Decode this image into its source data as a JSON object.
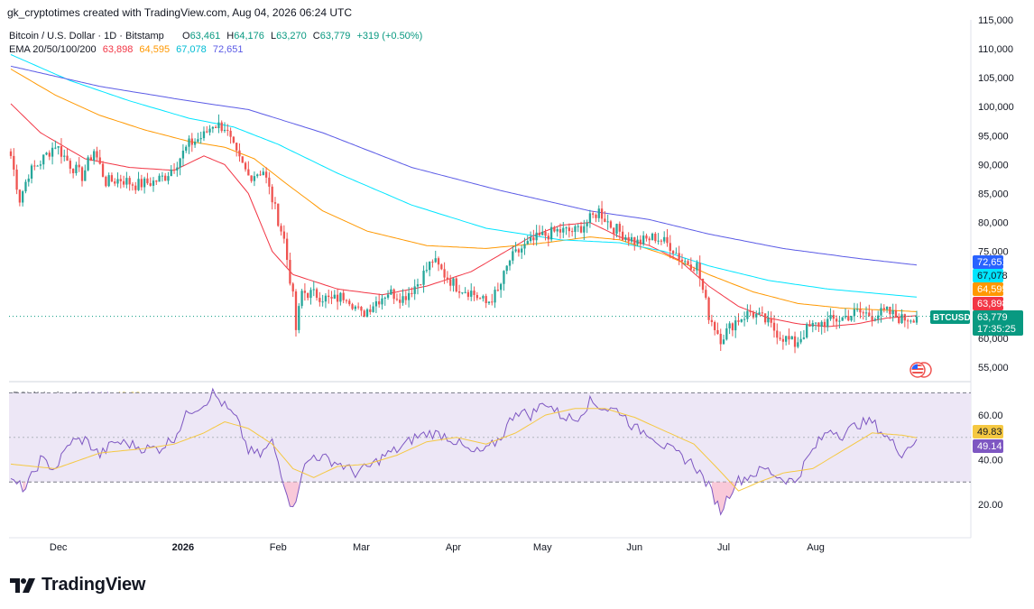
{
  "header": {
    "attribution": "gk_cryptotimes created with TradingView.com, Aug 04, 2026 06:24 UTC"
  },
  "legend": {
    "title": "Bitcoin / U.S. Dollar · 1D · Bitstamp",
    "o_label": "O",
    "o_value": "63,461",
    "h_label": "H",
    "h_value": "64,176",
    "l_label": "L",
    "l_value": "63,270",
    "c_label": "C",
    "c_value": "63,779",
    "change": "+319 (+0.50%)",
    "ema_title": "EMA 20/50/100/200",
    "ema_values": [
      "63,898",
      "64,595",
      "67,078",
      "72,651"
    ]
  },
  "rsi_legend": {
    "title": "RSI (14, close)",
    "rsi_value": "49.14",
    "ma_value": "49.83"
  },
  "price_tags": {
    "ema200": "72,651",
    "ema100": "67,078",
    "ema50": "64,595",
    "ema20": "63,898",
    "symbol": "BTCUSD",
    "last": "63,779",
    "countdown": "17:35:25",
    "rsi_ma": "49.83",
    "rsi": "49.14"
  },
  "colors": {
    "up": "#26a69a",
    "down": "#ef5350",
    "ema20": "#f23645",
    "ema50": "#ff9800",
    "ema100": "#00e5ff",
    "ema200": "#5b5be6",
    "rsi": "#7e57c2",
    "rsi_ma": "#f5c842",
    "rsi_band": "#ede7f6",
    "tag_ema200": "#2962ff",
    "tag_ema100": "#00e5ff",
    "tag_ema50": "#ff9800",
    "tag_ema20": "#f23645",
    "tag_last": "#089981"
  },
  "icons": {
    "flag": "us-flag-icon",
    "logo": "tradingview-logo-icon"
  },
  "brand": {
    "name": "TradingView"
  },
  "chart_data": [
    {
      "type": "candlestick",
      "title": "Bitcoin / U.S. Dollar · 1D · Bitstamp",
      "symbol": "BTCUSD",
      "x_tick_labels": [
        "Dec",
        "2026",
        "Feb",
        "Mar",
        "Apr",
        "May",
        "Jun",
        "Jul",
        "Aug"
      ],
      "y_tick_labels": [
        "115,000",
        "110,000",
        "105,000",
        "100,000",
        "95,000",
        "90,000",
        "85,000",
        "80,000",
        "75,000",
        "60,000",
        "55,000"
      ],
      "ylim": [
        52500,
        115000
      ],
      "last_price": 63779,
      "series": [
        {
          "name": "EMA 20",
          "values_anchors": [
            [
              0,
              100500
            ],
            [
              10,
              95500
            ],
            [
              25,
              91000
            ],
            [
              40,
              89500
            ],
            [
              55,
              89000
            ],
            [
              65,
              91500
            ],
            [
              72,
              90000
            ],
            [
              80,
              85000
            ],
            [
              88,
              75000
            ],
            [
              95,
              71000
            ],
            [
              110,
              68500
            ],
            [
              125,
              67500
            ],
            [
              140,
              69000
            ],
            [
              155,
              71500
            ],
            [
              165,
              74500
            ],
            [
              175,
              77500
            ],
            [
              185,
              79500
            ],
            [
              195,
              80000
            ],
            [
              205,
              77500
            ],
            [
              215,
              76000
            ],
            [
              225,
              73500
            ],
            [
              235,
              69000
            ],
            [
              245,
              65500
            ],
            [
              255,
              63500
            ],
            [
              265,
              62500
            ],
            [
              275,
              62000
            ],
            [
              285,
              62500
            ],
            [
              295,
              63500
            ],
            [
              305,
              63900
            ]
          ]
        },
        {
          "name": "EMA 50",
          "values_anchors": [
            [
              0,
              106500
            ],
            [
              15,
              102000
            ],
            [
              30,
              98500
            ],
            [
              45,
              96000
            ],
            [
              60,
              94000
            ],
            [
              72,
              93000
            ],
            [
              82,
              91000
            ],
            [
              92,
              87000
            ],
            [
              105,
              82000
            ],
            [
              120,
              78500
            ],
            [
              140,
              76000
            ],
            [
              160,
              75500
            ],
            [
              180,
              76500
            ],
            [
              195,
              77500
            ],
            [
              205,
              77000
            ],
            [
              220,
              74500
            ],
            [
              235,
              71000
            ],
            [
              250,
              68000
            ],
            [
              265,
              66000
            ],
            [
              280,
              65200
            ],
            [
              305,
              64600
            ]
          ]
        },
        {
          "name": "EMA 100",
          "values_anchors": [
            [
              0,
              109000
            ],
            [
              20,
              104500
            ],
            [
              40,
              101000
            ],
            [
              60,
              98000
            ],
            [
              75,
              96500
            ],
            [
              90,
              93500
            ],
            [
              110,
              88500
            ],
            [
              135,
              83000
            ],
            [
              160,
              79000
            ],
            [
              185,
              77000
            ],
            [
              205,
              76500
            ],
            [
              220,
              75000
            ],
            [
              235,
              72500
            ],
            [
              255,
              70000
            ],
            [
              275,
              68500
            ],
            [
              305,
              67100
            ]
          ]
        },
        {
          "name": "EMA 200",
          "values_anchors": [
            [
              0,
              107000
            ],
            [
              30,
              103500
            ],
            [
              60,
              101000
            ],
            [
              80,
              99500
            ],
            [
              105,
              95500
            ],
            [
              135,
              89500
            ],
            [
              165,
              85500
            ],
            [
              195,
              82000
            ],
            [
              215,
              80500
            ],
            [
              235,
              78000
            ],
            [
              260,
              75500
            ],
            [
              285,
              73800
            ],
            [
              305,
              72650
            ]
          ]
        }
      ],
      "candles_close_anchors": [
        [
          0,
          91500
        ],
        [
          3,
          84000
        ],
        [
          6,
          88500
        ],
        [
          10,
          90500
        ],
        [
          15,
          93500
        ],
        [
          20,
          90000
        ],
        [
          24,
          88000
        ],
        [
          28,
          92500
        ],
        [
          32,
          87000
        ],
        [
          37,
          87500
        ],
        [
          42,
          86500
        ],
        [
          48,
          87000
        ],
        [
          52,
          88000
        ],
        [
          56,
          90500
        ],
        [
          60,
          93500
        ],
        [
          65,
          95000
        ],
        [
          68,
          97000
        ],
        [
          72,
          96500
        ],
        [
          76,
          91500
        ],
        [
          80,
          88000
        ],
        [
          85,
          89000
        ],
        [
          88,
          84000
        ],
        [
          92,
          77000
        ],
        [
          95,
          67000
        ],
        [
          96,
          61500
        ],
        [
          98,
          68000
        ],
        [
          103,
          67500
        ],
        [
          108,
          66500
        ],
        [
          113,
          67500
        ],
        [
          118,
          64000
        ],
        [
          122,
          66000
        ],
        [
          127,
          68000
        ],
        [
          132,
          67000
        ],
        [
          137,
          69500
        ],
        [
          142,
          73500
        ],
        [
          146,
          71000
        ],
        [
          150,
          69000
        ],
        [
          155,
          68000
        ],
        [
          160,
          66000
        ],
        [
          164,
          68000
        ],
        [
          168,
          73500
        ],
        [
          172,
          75500
        ],
        [
          178,
          77500
        ],
        [
          184,
          78500
        ],
        [
          190,
          78500
        ],
        [
          194,
          80000
        ],
        [
          198,
          82000
        ],
        [
          202,
          79500
        ],
        [
          206,
          78000
        ],
        [
          211,
          76500
        ],
        [
          217,
          77500
        ],
        [
          222,
          76000
        ],
        [
          226,
          73500
        ],
        [
          231,
          72500
        ],
        [
          235,
          64000
        ],
        [
          239,
          60000
        ],
        [
          244,
          63000
        ],
        [
          249,
          64500
        ],
        [
          254,
          63000
        ],
        [
          259,
          60500
        ],
        [
          264,
          59000
        ],
        [
          268,
          61500
        ],
        [
          272,
          62500
        ],
        [
          276,
          63000
        ],
        [
          280,
          63500
        ],
        [
          285,
          64500
        ],
        [
          290,
          64000
        ],
        [
          295,
          64500
        ],
        [
          300,
          63300
        ],
        [
          305,
          63780
        ]
      ]
    },
    {
      "type": "line",
      "title": "RSI (14, close)",
      "y_tick_labels": [
        "60.00",
        "40.00",
        "20.00"
      ],
      "ylim": [
        5,
        75
      ],
      "band": [
        30,
        70
      ],
      "series": [
        {
          "name": "RSI",
          "values_anchors": [
            [
              0,
              30
            ],
            [
              5,
              27
            ],
            [
              10,
              40
            ],
            [
              15,
              36
            ],
            [
              20,
              48
            ],
            [
              25,
              49
            ],
            [
              30,
              42
            ],
            [
              35,
              48
            ],
            [
              40,
              47
            ],
            [
              45,
              45
            ],
            [
              50,
              45
            ],
            [
              55,
              50
            ],
            [
              60,
              62
            ],
            [
              65,
              65
            ],
            [
              68,
              70
            ],
            [
              72,
              64
            ],
            [
              76,
              58
            ],
            [
              80,
              44
            ],
            [
              84,
              42
            ],
            [
              88,
              48
            ],
            [
              92,
              30
            ],
            [
              95,
              17
            ],
            [
              98,
              35
            ],
            [
              102,
              42
            ],
            [
              107,
              40
            ],
            [
              111,
              38
            ],
            [
              116,
              34
            ],
            [
              121,
              37
            ],
            [
              126,
              42
            ],
            [
              131,
              45
            ],
            [
              136,
              50
            ],
            [
              141,
              52
            ],
            [
              146,
              51
            ],
            [
              150,
              48
            ],
            [
              155,
              43
            ],
            [
              160,
              44
            ],
            [
              165,
              50
            ],
            [
              170,
              62
            ],
            [
              175,
              60
            ],
            [
              180,
              66
            ],
            [
              185,
              60
            ],
            [
              190,
              58
            ],
            [
              195,
              66
            ],
            [
              200,
              63
            ],
            [
              205,
              62
            ],
            [
              210,
              54
            ],
            [
              215,
              52
            ],
            [
              220,
              46
            ],
            [
              225,
              42
            ],
            [
              230,
              38
            ],
            [
              235,
              28
            ],
            [
              239,
              17
            ],
            [
              244,
              30
            ],
            [
              249,
              33
            ],
            [
              254,
              36
            ],
            [
              259,
              32
            ],
            [
              264,
              30
            ],
            [
              268,
              40
            ],
            [
              272,
              48
            ],
            [
              276,
              54
            ],
            [
              280,
              51
            ],
            [
              285,
              56
            ],
            [
              290,
              57
            ],
            [
              295,
              50
            ],
            [
              300,
              43
            ],
            [
              305,
              49.14
            ]
          ]
        },
        {
          "name": "RSI-based MA",
          "values_anchors": [
            [
              0,
              38
            ],
            [
              15,
              36
            ],
            [
              30,
              43
            ],
            [
              45,
              45
            ],
            [
              55,
              47
            ],
            [
              65,
              52
            ],
            [
              72,
              57
            ],
            [
              80,
              54
            ],
            [
              88,
              47
            ],
            [
              95,
              36
            ],
            [
              102,
              32
            ],
            [
              110,
              37
            ],
            [
              120,
              38
            ],
            [
              130,
              42
            ],
            [
              140,
              48
            ],
            [
              150,
              50
            ],
            [
              160,
              47
            ],
            [
              170,
              52
            ],
            [
              180,
              60
            ],
            [
              190,
              63
            ],
            [
              200,
              63
            ],
            [
              210,
              59
            ],
            [
              220,
              53
            ],
            [
              230,
              47
            ],
            [
              238,
              36
            ],
            [
              245,
              26
            ],
            [
              252,
              30
            ],
            [
              260,
              34
            ],
            [
              270,
              36
            ],
            [
              280,
              44
            ],
            [
              290,
              52
            ],
            [
              300,
              51
            ],
            [
              305,
              49.83
            ]
          ]
        }
      ]
    }
  ]
}
